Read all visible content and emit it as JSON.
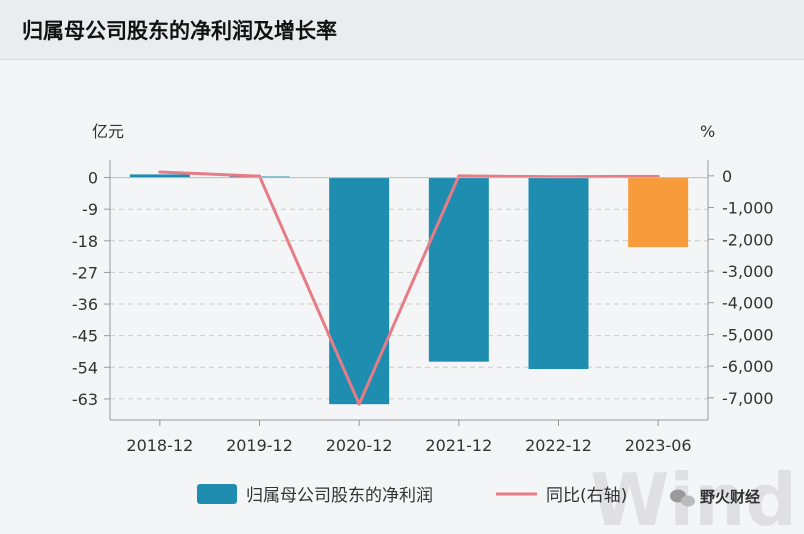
{
  "title": "归属母公司股东的净利润及增长率",
  "left_axis_unit": "亿元",
  "right_axis_unit": "%",
  "legend": {
    "bar_label": "归属母公司股东的净利润",
    "line_label": "同比(右轴)"
  },
  "watermark": {
    "logo_text": "Wind",
    "account_name": "野火财经"
  },
  "colors": {
    "bar": "#1f8db0",
    "bar_highlight": "#f89b3b",
    "line": "#e57c86",
    "axis": "#999999",
    "grid": "#cccccc"
  },
  "chart_data": {
    "type": "bar",
    "categories": [
      "2018-12",
      "2019-12",
      "2020-12",
      "2021-12",
      "2022-12",
      "2023-06"
    ],
    "series": [
      {
        "name": "归属母公司股东的净利润",
        "type": "bar",
        "axis": "left",
        "values": [
          0.9,
          0.3,
          -64.5,
          -52.4,
          -54.5,
          -19.8
        ]
      },
      {
        "name": "同比(右轴)",
        "type": "line",
        "axis": "right",
        "values": [
          120,
          -10,
          -7200,
          0,
          -30,
          -15
        ]
      }
    ],
    "y_left": {
      "label": "亿元",
      "ylim": [
        -69,
        5
      ],
      "ticks": [
        0,
        -9,
        -18,
        -27,
        -36,
        -45,
        -54,
        -63
      ],
      "tick_labels": [
        "0",
        "-9",
        "-18",
        "-27",
        "-36",
        "-45",
        "-54",
        "-63"
      ]
    },
    "y_right": {
      "label": "%",
      "ylim": [
        -7700,
        500
      ],
      "ticks": [
        0,
        -1000,
        -2000,
        -3000,
        -4000,
        -5000,
        -6000,
        -7000
      ],
      "tick_labels": [
        "0",
        "-1,000",
        "-2,000",
        "-3,000",
        "-4,000",
        "-5,000",
        "-6,000",
        "-7,000"
      ]
    },
    "highlighted_category": "2023-06",
    "grid": true,
    "legend_position": "bottom"
  }
}
